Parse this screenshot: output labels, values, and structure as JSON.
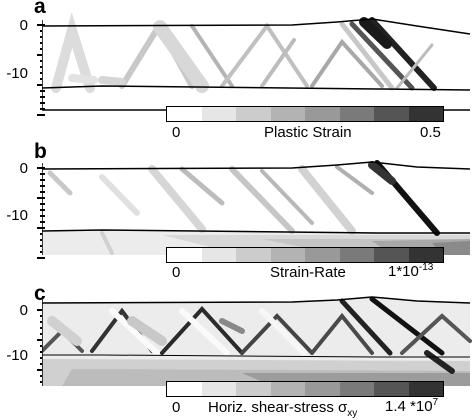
{
  "panels": [
    {
      "label": "a",
      "ticks": [
        "0",
        "-10"
      ],
      "colorbar": {
        "min": "0",
        "name": "Plastic Strain",
        "max": "0.5"
      }
    },
    {
      "label": "b",
      "ticks": [
        "0",
        "-10"
      ],
      "colorbar": {
        "min": "0",
        "name": "Strain-Rate",
        "max_base": "1*10",
        "max_exp": "-13"
      }
    },
    {
      "label": "c",
      "ticks": [
        "0",
        "-10"
      ],
      "colorbar": {
        "min": "0",
        "name_prefix": "Horiz.  shear-stress σ",
        "name_sub": "xy",
        "max_base": "1.4 *10",
        "max_exp": "7"
      }
    }
  ],
  "colors": {
    "scale": [
      "#ffffff",
      "#e6e6e6",
      "#cccccc",
      "#b3b3b3",
      "#999999",
      "#7a7a7a",
      "#555555",
      "#333333"
    ]
  }
}
